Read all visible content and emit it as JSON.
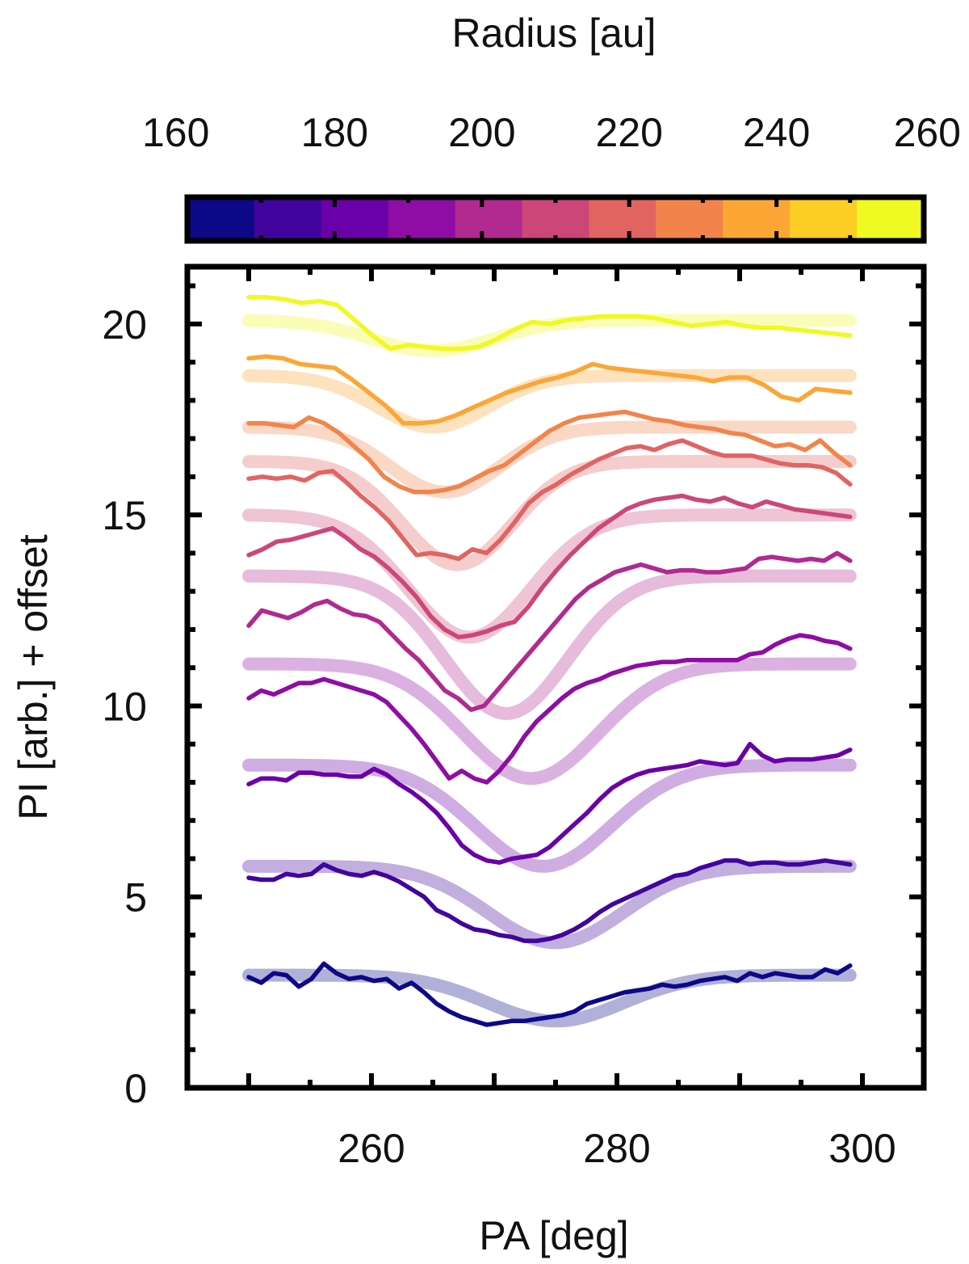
{
  "colorbar": {
    "label": "Radius [au]",
    "ticks": [
      "160",
      "180",
      "200",
      "220",
      "240",
      "260"
    ],
    "tick_values": [
      160,
      180,
      200,
      220,
      240,
      260
    ],
    "range": [
      160,
      260
    ],
    "colors": [
      "#0d0887",
      "#41049d",
      "#6a00a8",
      "#8f0da4",
      "#b12a90",
      "#cc4778",
      "#e16462",
      "#f2844b",
      "#fca636",
      "#fcce25",
      "#f0f921"
    ]
  },
  "chart_data": {
    "type": "line",
    "xlabel": "PA [deg]",
    "ylabel": "PI [arb.] + offset",
    "xlim": [
      245,
      305
    ],
    "ylim": [
      0,
      21.5
    ],
    "xticks": [
      260,
      280,
      300
    ],
    "yticks": [
      0,
      5,
      10,
      15,
      20
    ],
    "x_step_deg": 1,
    "x_start": 250,
    "series": [
      {
        "radius_au": 165,
        "color": "#0d0887",
        "values": [
          2.9,
          2.75,
          3.0,
          2.95,
          2.65,
          2.85,
          3.25,
          3.0,
          2.85,
          2.9,
          2.8,
          2.85,
          2.6,
          2.75,
          2.5,
          2.2,
          2.0,
          1.85,
          1.75,
          1.65,
          1.7,
          1.75,
          1.75,
          1.8,
          1.85,
          1.9,
          2.0,
          2.2,
          2.3,
          2.4,
          2.5,
          2.55,
          2.6,
          2.7,
          2.65,
          2.7,
          2.8,
          2.85,
          2.9,
          2.8,
          3.0,
          2.9,
          3.0,
          2.95,
          2.9,
          2.9,
          3.1,
          3.0,
          3.2
        ],
        "fit": {
          "base": 2.95,
          "depth": 1.2,
          "center": 275,
          "width": 5.5
        }
      },
      {
        "radius_au": 175,
        "color": "#41049d",
        "values": [
          5.5,
          5.45,
          5.45,
          5.6,
          5.55,
          5.6,
          5.85,
          5.7,
          5.6,
          5.55,
          5.65,
          5.55,
          5.4,
          5.2,
          5.0,
          4.65,
          4.5,
          4.3,
          4.15,
          4.1,
          4.0,
          3.95,
          3.85,
          3.85,
          3.9,
          4.0,
          4.15,
          4.35,
          4.6,
          4.8,
          4.95,
          5.1,
          5.25,
          5.4,
          5.55,
          5.6,
          5.75,
          5.85,
          5.95,
          5.95,
          5.85,
          5.9,
          5.9,
          5.85,
          5.85,
          5.9,
          5.95,
          5.9,
          5.85
        ],
        "fit": {
          "base": 5.8,
          "depth": 2.0,
          "center": 275,
          "width": 5.5
        }
      },
      {
        "radius_au": 185,
        "color": "#6a00a8",
        "values": [
          7.95,
          8.1,
          8.1,
          8.05,
          8.25,
          8.25,
          8.2,
          8.2,
          8.15,
          8.15,
          8.35,
          8.2,
          7.95,
          7.75,
          7.5,
          7.2,
          6.8,
          6.35,
          6.1,
          5.95,
          5.9,
          6.0,
          6.05,
          6.1,
          6.3,
          6.6,
          6.9,
          7.2,
          7.55,
          7.85,
          8.05,
          8.2,
          8.3,
          8.35,
          8.4,
          8.45,
          8.55,
          8.5,
          8.45,
          8.5,
          9.0,
          8.7,
          8.55,
          8.6,
          8.6,
          8.6,
          8.65,
          8.7,
          8.85
        ],
        "fit": {
          "base": 8.45,
          "depth": 2.65,
          "center": 274,
          "width": 5.5
        }
      },
      {
        "radius_au": 195,
        "color": "#8f0da4",
        "values": [
          10.2,
          10.4,
          10.3,
          10.45,
          10.6,
          10.6,
          10.7,
          10.6,
          10.5,
          10.4,
          10.3,
          10.1,
          9.75,
          9.4,
          9.0,
          8.55,
          8.1,
          8.3,
          8.1,
          8.0,
          8.3,
          8.7,
          9.2,
          9.6,
          9.9,
          10.2,
          10.45,
          10.6,
          10.7,
          10.85,
          10.95,
          11.05,
          11.1,
          11.15,
          11.15,
          11.2,
          11.2,
          11.2,
          11.2,
          11.2,
          11.35,
          11.4,
          11.6,
          11.75,
          11.85,
          11.8,
          11.7,
          11.65,
          11.5
        ],
        "fit": {
          "base": 11.1,
          "depth": 3.0,
          "center": 273,
          "width": 5.5
        }
      },
      {
        "radius_au": 205,
        "color": "#b12a90",
        "values": [
          12.1,
          12.5,
          12.4,
          12.3,
          12.45,
          12.65,
          12.75,
          12.55,
          12.4,
          12.35,
          12.2,
          11.85,
          11.5,
          11.2,
          10.8,
          10.4,
          10.2,
          9.9,
          10.0,
          10.4,
          10.8,
          11.2,
          11.6,
          12.0,
          12.4,
          12.8,
          13.1,
          13.3,
          13.5,
          13.6,
          13.7,
          13.6,
          13.5,
          13.55,
          13.55,
          13.5,
          13.5,
          13.55,
          13.6,
          13.85,
          13.9,
          13.85,
          13.8,
          13.85,
          13.8,
          14.0,
          13.8
        ],
        "fit": {
          "base": 13.4,
          "depth": 3.6,
          "center": 271,
          "width": 5.0
        }
      },
      {
        "radius_au": 215,
        "color": "#cc4778",
        "values": [
          13.95,
          14.1,
          14.3,
          14.35,
          14.45,
          14.55,
          14.65,
          14.4,
          14.1,
          13.9,
          13.6,
          13.25,
          12.85,
          12.35,
          12.0,
          11.8,
          11.85,
          11.95,
          12.1,
          12.2,
          12.6,
          13.1,
          13.55,
          13.95,
          14.3,
          14.65,
          14.9,
          15.15,
          15.3,
          15.4,
          15.45,
          15.5,
          15.4,
          15.35,
          15.45,
          15.3,
          15.2,
          15.35,
          15.25,
          15.15,
          15.1,
          15.05,
          15.0,
          14.95
        ],
        "fit": {
          "base": 15.0,
          "depth": 3.2,
          "center": 268,
          "width": 5.0
        }
      },
      {
        "radius_au": 225,
        "color": "#e16462",
        "values": [
          15.95,
          16.0,
          15.95,
          16.0,
          15.9,
          16.1,
          16.15,
          15.85,
          15.5,
          15.2,
          14.85,
          14.4,
          13.95,
          14.0,
          13.95,
          13.85,
          14.1,
          14.0,
          14.35,
          14.8,
          15.3,
          15.6,
          15.8,
          16.05,
          16.25,
          16.45,
          16.6,
          16.75,
          16.8,
          16.7,
          16.85,
          16.95,
          16.8,
          16.65,
          16.55,
          16.55,
          16.55,
          16.45,
          16.35,
          16.3,
          16.3,
          16.25,
          16.1,
          15.8
        ],
        "fit": {
          "base": 16.4,
          "depth": 2.7,
          "center": 267,
          "width": 4.5
        }
      },
      {
        "radius_au": 235,
        "color": "#f2844b",
        "values": [
          17.4,
          17.4,
          17.35,
          17.3,
          17.55,
          17.4,
          17.15,
          16.8,
          16.45,
          16.0,
          15.75,
          15.6,
          15.6,
          15.65,
          15.75,
          15.95,
          16.15,
          16.3,
          16.6,
          16.9,
          17.2,
          17.4,
          17.55,
          17.6,
          17.65,
          17.7,
          17.6,
          17.5,
          17.45,
          17.35,
          17.3,
          17.25,
          17.15,
          17.1,
          16.95,
          16.8,
          16.85,
          16.7,
          16.95,
          16.6,
          16.3
        ],
        "fit": {
          "base": 17.3,
          "depth": 1.7,
          "center": 266,
          "width": 4.5
        }
      },
      {
        "radius_au": 245,
        "color": "#fca636",
        "values": [
          19.1,
          19.15,
          19.1,
          18.95,
          18.9,
          18.85,
          18.55,
          18.2,
          17.85,
          17.4,
          17.4,
          17.45,
          17.6,
          17.8,
          18.0,
          18.2,
          18.35,
          18.5,
          18.6,
          18.75,
          18.95,
          18.85,
          18.8,
          18.75,
          18.7,
          18.65,
          18.6,
          18.5,
          18.6,
          18.6,
          18.4,
          18.1,
          18.0,
          18.3,
          18.25,
          18.2
        ],
        "fit": {
          "base": 18.65,
          "depth": 1.35,
          "center": 265,
          "width": 4.5
        }
      },
      {
        "radius_au": 255,
        "color": "#f0f921",
        "values": [
          20.7,
          20.7,
          20.65,
          20.55,
          20.6,
          20.5,
          20.1,
          19.7,
          19.35,
          19.45,
          19.4,
          19.35,
          19.35,
          19.4,
          19.6,
          19.85,
          20.05,
          20.0,
          20.1,
          20.15,
          20.2,
          20.2,
          20.2,
          20.15,
          20.05,
          19.95,
          20.0,
          20.05,
          19.95,
          19.9,
          19.9,
          19.85,
          19.8,
          19.75,
          19.7
        ],
        "fit": {
          "base": 20.1,
          "depth": 0.8,
          "center": 265,
          "width": 5.0
        }
      }
    ]
  }
}
